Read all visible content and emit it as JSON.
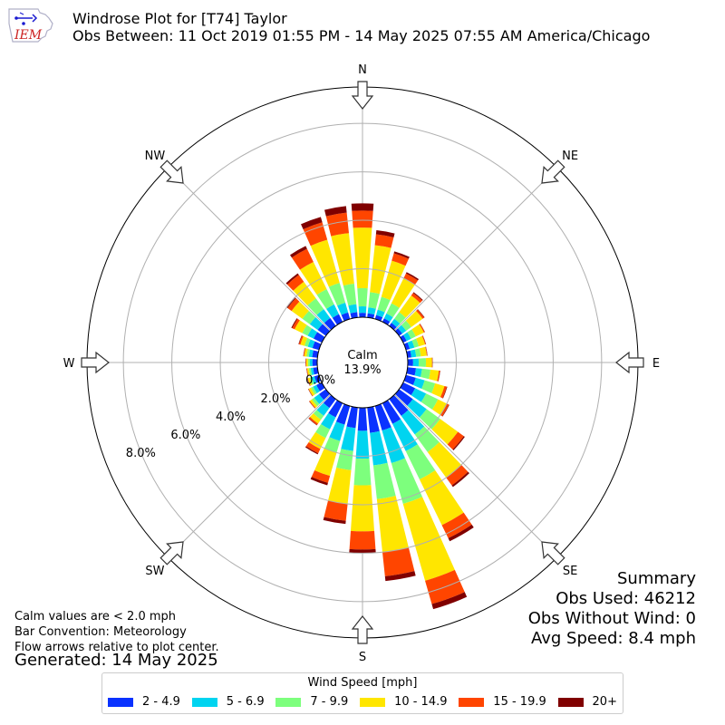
{
  "header": {
    "title": "Windrose Plot for [T74] Taylor",
    "subtitle": "Obs Between: 11 Oct 2019 01:55 PM - 14 May 2025 07:55 AM America/Chicago",
    "logo_text": "IEM"
  },
  "notes": {
    "calm_note": "Calm values are < 2.0 mph",
    "bar_convention": "Bar Convention: Meteorology",
    "flow_arrows": "Flow arrows relative to plot center.",
    "generated": "Generated: 14 May 2025"
  },
  "summary": {
    "heading": "Summary",
    "obs_used": "Obs Used: 46212",
    "obs_without_wind": "Obs Without Wind: 0",
    "avg_speed": "Avg Speed: 8.4 mph"
  },
  "legend": {
    "title": "Wind Speed [mph]",
    "items": [
      {
        "label": "2 - 4.9",
        "color": "#0a32ff"
      },
      {
        "label": "5 - 6.9",
        "color": "#00d4f0"
      },
      {
        "label": "7 - 9.9",
        "color": "#7dff7d"
      },
      {
        "label": "10 - 14.9",
        "color": "#ffe600"
      },
      {
        "label": "15 - 19.9",
        "color": "#ff4500"
      },
      {
        "label": "20+",
        "color": "#800000"
      }
    ]
  },
  "chart_data": {
    "type": "windrose",
    "calm_label": "Calm",
    "calm_value_text": "13.9%",
    "calm_percent": 13.9,
    "radial_tick_labels": [
      "0.0%",
      "2.0%",
      "4.0%",
      "6.0%",
      "8.0%"
    ],
    "radial_ticks": [
      0,
      2,
      4,
      6,
      8
    ],
    "rmax": 9.5,
    "direction_labels": [
      "N",
      "NE",
      "E",
      "SE",
      "S",
      "SW",
      "W",
      "NW"
    ],
    "grid": true,
    "bar_convention": "meteorology",
    "speed_bins": [
      "2 - 4.9",
      "5 - 6.9",
      "7 - 9.9",
      "10 - 14.9",
      "15 - 19.9",
      "20+"
    ],
    "directions_deg": [
      0,
      10,
      20,
      30,
      40,
      50,
      60,
      70,
      80,
      90,
      100,
      110,
      120,
      130,
      140,
      150,
      160,
      170,
      180,
      190,
      200,
      210,
      220,
      230,
      240,
      250,
      260,
      270,
      280,
      290,
      300,
      310,
      320,
      330,
      340,
      350
    ],
    "cumulative_percent": [
      [
        0.18,
        0.45,
        1.2,
        3.7,
        4.4,
        4.7
      ],
      [
        0.17,
        0.42,
        1.05,
        3.0,
        3.45,
        3.62
      ],
      [
        0.17,
        0.4,
        0.95,
        2.5,
        2.82,
        2.9
      ],
      [
        0.16,
        0.38,
        0.85,
        2.0,
        2.22,
        2.28
      ],
      [
        0.16,
        0.36,
        0.7,
        1.55,
        1.68,
        1.72
      ],
      [
        0.16,
        0.36,
        0.62,
        1.2,
        1.28,
        1.3
      ],
      [
        0.16,
        0.36,
        0.58,
        0.95,
        0.99,
        1.0
      ],
      [
        0.16,
        0.36,
        0.55,
        0.82,
        0.85,
        0.86
      ],
      [
        0.16,
        0.36,
        0.55,
        0.8,
        0.82,
        0.83
      ],
      [
        0.22,
        0.45,
        0.75,
        1.0,
        1.02,
        1.03
      ],
      [
        0.35,
        0.6,
        0.95,
        1.3,
        1.35,
        1.36
      ],
      [
        0.42,
        0.8,
        1.25,
        1.65,
        1.75,
        1.77
      ],
      [
        0.55,
        1.05,
        1.6,
        2.0,
        2.1,
        2.12
      ],
      [
        0.7,
        1.4,
        2.1,
        3.0,
        3.3,
        3.35
      ],
      [
        0.85,
        1.8,
        2.7,
        4.0,
        4.4,
        4.48
      ],
      [
        0.95,
        2.2,
        3.5,
        5.6,
        6.2,
        6.34
      ],
      [
        1.05,
        2.45,
        4.2,
        7.5,
        8.5,
        8.72
      ],
      [
        1.05,
        2.4,
        3.8,
        6.0,
        7.0,
        7.2
      ],
      [
        0.95,
        2.1,
        3.2,
        5.1,
        5.85,
        6.0
      ],
      [
        0.85,
        1.8,
        2.6,
        4.0,
        4.7,
        4.83
      ],
      [
        0.8,
        1.5,
        2.0,
        3.0,
        3.3,
        3.4
      ],
      [
        0.65,
        1.2,
        1.6,
        2.1,
        2.3,
        2.35
      ],
      [
        0.45,
        0.85,
        1.05,
        1.25,
        1.32,
        1.34
      ],
      [
        0.35,
        0.6,
        0.72,
        0.82,
        0.85,
        0.86
      ],
      [
        0.25,
        0.4,
        0.5,
        0.6,
        0.62,
        0.63
      ],
      [
        0.2,
        0.32,
        0.4,
        0.48,
        0.5,
        0.51
      ],
      [
        0.18,
        0.28,
        0.36,
        0.43,
        0.45,
        0.46
      ],
      [
        0.2,
        0.3,
        0.38,
        0.45,
        0.47,
        0.48
      ],
      [
        0.22,
        0.36,
        0.45,
        0.55,
        0.58,
        0.59
      ],
      [
        0.28,
        0.48,
        0.62,
        0.8,
        0.86,
        0.88
      ],
      [
        0.38,
        0.65,
        0.9,
        1.25,
        1.36,
        1.4
      ],
      [
        0.42,
        0.82,
        1.2,
        1.75,
        1.95,
        2.02
      ],
      [
        0.4,
        0.85,
        1.4,
        2.25,
        2.6,
        2.68
      ],
      [
        0.35,
        0.8,
        1.5,
        2.75,
        3.35,
        3.48
      ],
      [
        0.28,
        0.7,
        1.55,
        3.4,
        4.15,
        4.38
      ],
      [
        0.22,
        0.55,
        1.4,
        3.5,
        4.35,
        4.62
      ]
    ]
  }
}
